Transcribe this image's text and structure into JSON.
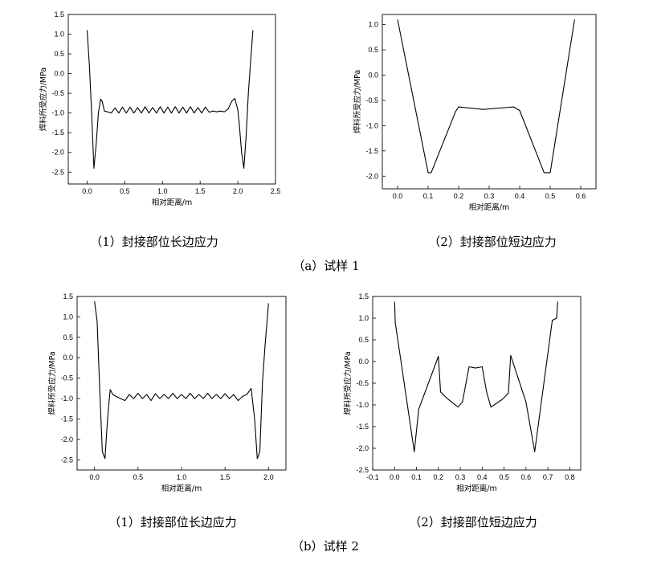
{
  "chart_data": [
    {
      "type": "line",
      "id": "a1",
      "xlabel": "相对距离/m",
      "ylabel": "焊料所受应力/MPa",
      "xlim": [
        -0.25,
        2.5
      ],
      "ylim": [
        -2.8,
        1.5
      ],
      "xticks": [
        0.0,
        0.5,
        1.0,
        1.5,
        2.0,
        2.5
      ],
      "yticks": [
        1.5,
        1.0,
        0.5,
        0.0,
        -0.5,
        -1.0,
        -1.5,
        -2.0,
        -2.5
      ],
      "x": [
        0.0,
        0.03,
        0.06,
        0.09,
        0.12,
        0.15,
        0.18,
        0.2,
        0.23,
        0.27,
        0.32,
        0.37,
        0.42,
        0.47,
        0.52,
        0.57,
        0.62,
        0.67,
        0.72,
        0.77,
        0.82,
        0.87,
        0.92,
        0.97,
        1.02,
        1.07,
        1.12,
        1.17,
        1.22,
        1.27,
        1.32,
        1.37,
        1.42,
        1.47,
        1.52,
        1.57,
        1.62,
        1.67,
        1.72,
        1.77,
        1.82,
        1.87,
        1.92,
        1.96,
        2.0,
        2.02,
        2.05,
        2.08,
        2.11,
        2.14,
        2.17,
        2.2
      ],
      "y": [
        1.1,
        0.2,
        -1.0,
        -2.4,
        -1.8,
        -1.0,
        -0.65,
        -0.7,
        -0.95,
        -0.97,
        -1.0,
        -0.87,
        -1.0,
        -0.85,
        -1.0,
        -0.85,
        -1.0,
        -0.86,
        -1.0,
        -0.84,
        -1.0,
        -0.86,
        -1.0,
        -0.84,
        -1.0,
        -0.85,
        -1.0,
        -0.84,
        -1.0,
        -0.85,
        -1.0,
        -0.84,
        -1.0,
        -0.86,
        -1.0,
        -0.85,
        -0.98,
        -0.95,
        -0.97,
        -0.95,
        -0.97,
        -0.9,
        -0.7,
        -0.63,
        -0.92,
        -1.3,
        -2.0,
        -2.4,
        -1.6,
        -0.5,
        0.3,
        1.1
      ]
    },
    {
      "type": "line",
      "id": "a2",
      "xlabel": "相对距离/m",
      "ylabel": "焊料所受应力/MPa",
      "xlim": [
        -0.05,
        0.65
      ],
      "ylim": [
        -2.25,
        1.2
      ],
      "xticks": [
        0.0,
        0.1,
        0.2,
        0.3,
        0.4,
        0.5,
        0.6
      ],
      "yticks": [
        1.0,
        0.5,
        0.0,
        -0.5,
        -1.0,
        -1.5,
        -2.0
      ],
      "x": [
        0.0,
        0.1,
        0.11,
        0.19,
        0.2,
        0.28,
        0.38,
        0.4,
        0.48,
        0.5,
        0.58
      ],
      "y": [
        1.1,
        -1.93,
        -1.93,
        -0.72,
        -0.63,
        -0.68,
        -0.63,
        -0.7,
        -1.93,
        -1.93,
        1.1
      ]
    },
    {
      "type": "line",
      "id": "b1",
      "xlabel": "相对距离/m",
      "ylabel": "焊料所受应力/MPa",
      "xlim": [
        -0.2,
        2.2
      ],
      "ylim": [
        -2.75,
        1.5
      ],
      "xticks": [
        0.0,
        0.5,
        1.0,
        1.5,
        2.0
      ],
      "yticks": [
        1.5,
        1.0,
        0.5,
        0.0,
        -0.5,
        -1.0,
        -1.5,
        -2.0,
        -2.5
      ],
      "x": [
        0.0,
        0.03,
        0.06,
        0.09,
        0.12,
        0.15,
        0.18,
        0.21,
        0.25,
        0.3,
        0.35,
        0.4,
        0.45,
        0.5,
        0.55,
        0.6,
        0.65,
        0.7,
        0.75,
        0.8,
        0.85,
        0.9,
        0.95,
        1.0,
        1.05,
        1.1,
        1.15,
        1.2,
        1.25,
        1.3,
        1.35,
        1.4,
        1.45,
        1.5,
        1.55,
        1.6,
        1.65,
        1.7,
        1.75,
        1.8,
        1.84,
        1.87,
        1.9,
        1.93,
        1.96,
        2.0
      ],
      "y": [
        1.38,
        0.9,
        -0.8,
        -2.3,
        -2.47,
        -1.5,
        -0.78,
        -0.9,
        -0.95,
        -1.0,
        -1.05,
        -0.9,
        -1.0,
        -0.87,
        -1.0,
        -0.9,
        -1.05,
        -0.88,
        -1.0,
        -0.9,
        -1.0,
        -0.87,
        -1.0,
        -0.9,
        -1.0,
        -0.87,
        -1.0,
        -0.9,
        -1.0,
        -0.87,
        -1.0,
        -0.9,
        -1.0,
        -0.88,
        -1.0,
        -0.9,
        -1.05,
        -0.95,
        -0.9,
        -0.75,
        -1.5,
        -2.47,
        -2.3,
        -0.6,
        0.3,
        1.33
      ]
    },
    {
      "type": "line",
      "id": "b2",
      "xlabel": "相对距离/m",
      "ylabel": "焊料所受应力/MPa",
      "xlim": [
        -0.1,
        0.85
      ],
      "ylim": [
        -2.5,
        1.5
      ],
      "xticks": [
        -0.1,
        0.0,
        0.1,
        0.2,
        0.3,
        0.4,
        0.5,
        0.6,
        0.7,
        0.8
      ],
      "yticks": [
        1.5,
        1.0,
        0.5,
        0.0,
        -0.5,
        -1.0,
        -1.5,
        -2.0,
        -2.5
      ],
      "x": [
        0.0,
        0.003,
        0.09,
        0.11,
        0.2,
        0.21,
        0.24,
        0.29,
        0.31,
        0.34,
        0.37,
        0.4,
        0.42,
        0.44,
        0.49,
        0.52,
        0.53,
        0.6,
        0.64,
        0.72,
        0.74,
        0.745
      ],
      "y": [
        1.38,
        0.9,
        -2.08,
        -1.1,
        0.12,
        -0.7,
        -0.85,
        -1.05,
        -0.93,
        -0.12,
        -0.15,
        -0.12,
        -0.7,
        -1.05,
        -0.88,
        -0.73,
        0.14,
        -0.93,
        -2.08,
        0.95,
        1.0,
        1.38
      ]
    }
  ],
  "captions": {
    "a1": "（1）封接部位长边应力",
    "a2": "（2）封接部位短边应力",
    "a": "（a）试样 1",
    "b1": "（1）封接部位长边应力",
    "b2": "（2）封接部位短边应力",
    "b": "（b）试样 2"
  }
}
